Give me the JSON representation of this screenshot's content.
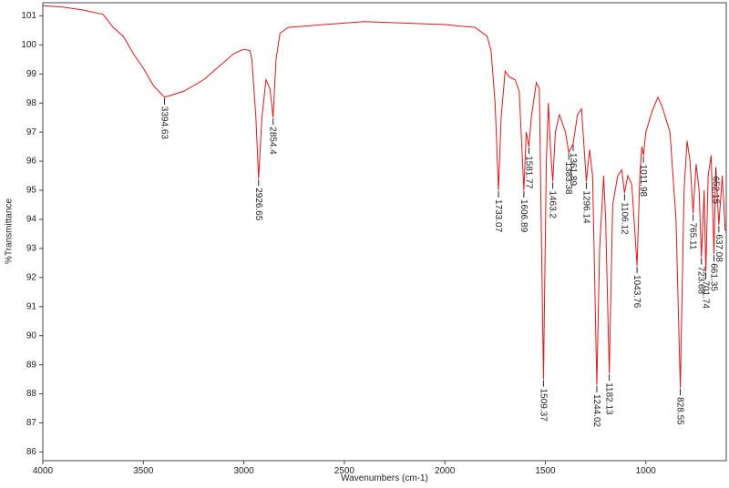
{
  "chart_data": {
    "type": "line",
    "x_label": "Wavenumbers (cm-1)",
    "y_label": "%Transmittance",
    "color": "#e0161b",
    "xlim": [
      4000,
      600
    ],
    "ylim": [
      85.7,
      101.45
    ],
    "xticks": [
      4000,
      3500,
      3000,
      2500,
      2000,
      1500,
      1000
    ],
    "yticks": [
      86,
      87,
      88,
      89,
      90,
      91,
      92,
      93,
      94,
      95,
      96,
      97,
      98,
      99,
      100,
      101
    ],
    "x": [
      4000,
      3900,
      3800,
      3700,
      3650,
      3600,
      3550,
      3500,
      3450,
      3394.63,
      3300,
      3200,
      3100,
      3050,
      3000,
      2970,
      2960,
      2940,
      2926.65,
      2910,
      2890,
      2870,
      2854.4,
      2840,
      2820,
      2780,
      2600,
      2400,
      2200,
      2000,
      1850,
      1790,
      1770,
      1750,
      1733.07,
      1720,
      1700,
      1680,
      1650,
      1630,
      1606.89,
      1595,
      1581.77,
      1570,
      1545,
      1530,
      1509.37,
      1495,
      1485,
      1475,
      1463.2,
      1450,
      1430,
      1400,
      1383.38,
      1361.89,
      1340,
      1320,
      1296.14,
      1280,
      1265,
      1244.02,
      1230,
      1210,
      1200,
      1182.13,
      1165,
      1140,
      1120,
      1106.12,
      1090,
      1070,
      1043.76,
      1030,
      1020,
      1011.98,
      1000,
      970,
      940,
      920,
      880,
      850,
      828.55,
      810,
      795,
      780,
      765.11,
      750,
      735,
      723.68,
      710,
      701.74,
      690,
      675,
      661.35,
      652.15,
      637.08,
      620,
      605
    ],
    "values": [
      101.35,
      101.3,
      101.2,
      101.05,
      100.6,
      100.3,
      99.7,
      99.2,
      98.6,
      98.2,
      98.4,
      98.8,
      99.4,
      99.7,
      99.85,
      99.8,
      99.5,
      97.5,
      95.4,
      97.5,
      98.8,
      98.5,
      97.5,
      99.5,
      100.4,
      100.6,
      100.7,
      100.8,
      100.75,
      100.7,
      100.6,
      100.3,
      99.8,
      98,
      95,
      97.5,
      99.1,
      98.9,
      98.8,
      98.4,
      95,
      97,
      96.5,
      97.5,
      98.7,
      98.5,
      88.5,
      96,
      98,
      96.5,
      95.3,
      97,
      97.6,
      97,
      96.3,
      96.6,
      97.6,
      97.8,
      95.3,
      96.4,
      95.5,
      88.3,
      93,
      95.5,
      94,
      88.7,
      94.5,
      95.5,
      95.7,
      94.9,
      95.5,
      95.2,
      92.4,
      95.5,
      96.5,
      96.2,
      97,
      97.7,
      98.2,
      97.9,
      97,
      94,
      88.2,
      95,
      96.7,
      96,
      94.2,
      95.9,
      95,
      92.7,
      95,
      92.2,
      95.5,
      96.2,
      92.8,
      95.8,
      93.8,
      95.5,
      93.6
    ],
    "peaks": [
      3394.63,
      2926.65,
      2854.4,
      1733.07,
      1606.89,
      1581.77,
      1509.37,
      1463.2,
      1383.38,
      1361.89,
      1296.14,
      1244.02,
      1182.13,
      1106.12,
      1043.76,
      1011.98,
      828.55,
      765.11,
      723.68,
      701.74,
      661.35,
      652.15,
      637.08
    ]
  }
}
